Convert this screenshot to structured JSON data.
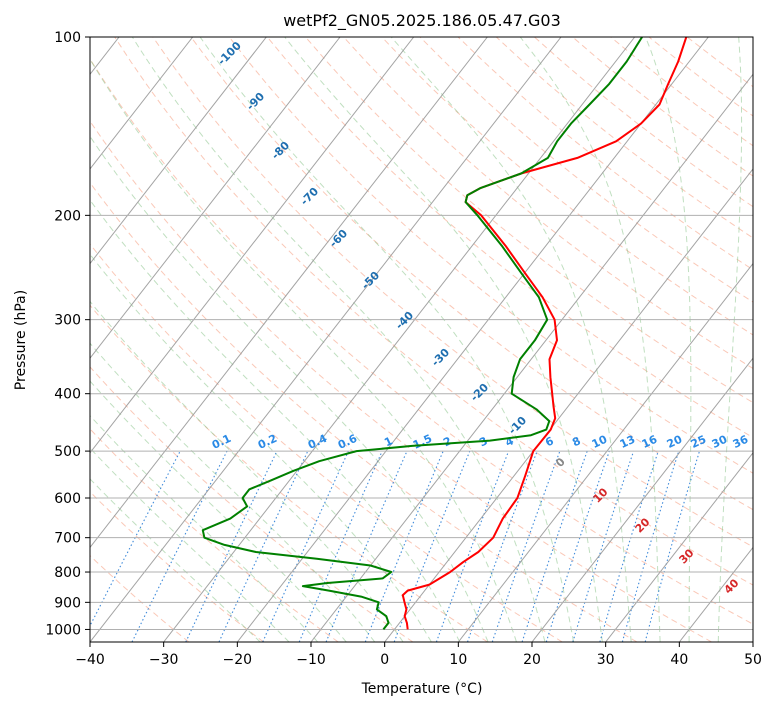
{
  "chart_data": {
    "type": "skew-t",
    "title": "wetPf2_GN05.2025.186.05.47.G03",
    "xlabel": "Temperature (°C)",
    "ylabel": "Pressure (hPa)",
    "xlim": [
      -40,
      50
    ],
    "ylim": [
      1050,
      100
    ],
    "y_scale": "log",
    "grid": true,
    "x_ticks": [
      "−40",
      "−30",
      "−20",
      "−10",
      "0",
      "10",
      "20",
      "30",
      "40",
      "50"
    ],
    "x_tick_values": [
      -40,
      -30,
      -20,
      -10,
      0,
      10,
      20,
      30,
      40,
      50
    ],
    "y_ticks": [
      "100",
      "200",
      "300",
      "400",
      "500",
      "600",
      "700",
      "800",
      "900",
      "1000"
    ],
    "y_tick_values": [
      100,
      200,
      300,
      400,
      500,
      600,
      700,
      800,
      900,
      1000
    ],
    "isotherm_labels": [
      "-100",
      "-90",
      "-80",
      "-70",
      "-60",
      "-50",
      "-40",
      "-30",
      "-20",
      "-10"
    ],
    "isotherm_label_values": [
      -100,
      -90,
      -80,
      -70,
      -60,
      -50,
      -40,
      -30,
      -20,
      -10
    ],
    "mixing_ratio_labels": [
      "0.1",
      "0.2",
      "0.4",
      "0.6",
      "1",
      "1.5",
      "2",
      "3",
      "4",
      "6",
      "8",
      "10",
      "13",
      "16",
      "20",
      "25",
      "30",
      "36"
    ],
    "mixing_ratio_values": [
      0.1,
      0.2,
      0.4,
      0.6,
      1,
      1.5,
      2,
      3,
      4,
      6,
      8,
      10,
      13,
      16,
      20,
      25,
      30,
      36
    ],
    "moist_adiabat_labels": [
      "0",
      "10",
      "20",
      "30",
      "40"
    ],
    "series": [
      {
        "color": "#ff0000",
        "points": [
          {
            "p": 1000,
            "t": 1.8
          },
          {
            "p": 975,
            "t": 1.0
          },
          {
            "p": 950,
            "t": 0.0
          },
          {
            "p": 925,
            "t": -0.5
          },
          {
            "p": 900,
            "t": -1.5
          },
          {
            "p": 875,
            "t": -2.5
          },
          {
            "p": 860,
            "t": -2.3
          },
          {
            "p": 840,
            "t": 0.0
          },
          {
            "p": 800,
            "t": 1.5
          },
          {
            "p": 770,
            "t": 2.2
          },
          {
            "p": 740,
            "t": 3.2
          },
          {
            "p": 700,
            "t": 3.7
          },
          {
            "p": 650,
            "t": 3.0
          },
          {
            "p": 600,
            "t": 2.8
          },
          {
            "p": 550,
            "t": 1.5
          },
          {
            "p": 500,
            "t": 0.0
          },
          {
            "p": 460,
            "t": 0.1
          },
          {
            "p": 440,
            "t": -0.5
          },
          {
            "p": 420,
            "t": -2.0
          },
          {
            "p": 400,
            "t": -3.5
          },
          {
            "p": 375,
            "t": -5.5
          },
          {
            "p": 350,
            "t": -7.5
          },
          {
            "p": 325,
            "t": -8.5
          },
          {
            "p": 300,
            "t": -11.0
          },
          {
            "p": 275,
            "t": -15.0
          },
          {
            "p": 250,
            "t": -20.0
          },
          {
            "p": 225,
            "t": -25.5
          },
          {
            "p": 200,
            "t": -32.0
          },
          {
            "p": 190,
            "t": -35.5
          },
          {
            "p": 185,
            "t": -36.0
          },
          {
            "p": 180,
            "t": -35.0
          },
          {
            "p": 170,
            "t": -31.0
          },
          {
            "p": 160,
            "t": -25.0
          },
          {
            "p": 150,
            "t": -21.5
          },
          {
            "p": 140,
            "t": -20.0
          },
          {
            "p": 130,
            "t": -19.5
          },
          {
            "p": 120,
            "t": -20.5
          },
          {
            "p": 110,
            "t": -21.5
          },
          {
            "p": 100,
            "t": -23.0
          }
        ]
      },
      {
        "color": "#008000",
        "points": [
          {
            "p": 1000,
            "t": -1.5
          },
          {
            "p": 975,
            "t": -1.5
          },
          {
            "p": 950,
            "t": -2.5
          },
          {
            "p": 925,
            "t": -4.5
          },
          {
            "p": 900,
            "t": -5.0
          },
          {
            "p": 880,
            "t": -8.0
          },
          {
            "p": 860,
            "t": -13.0
          },
          {
            "p": 845,
            "t": -17.0
          },
          {
            "p": 835,
            "t": -14.0
          },
          {
            "p": 820,
            "t": -7.0
          },
          {
            "p": 800,
            "t": -6.5
          },
          {
            "p": 780,
            "t": -10.0
          },
          {
            "p": 760,
            "t": -18.0
          },
          {
            "p": 740,
            "t": -27.0
          },
          {
            "p": 720,
            "t": -32.0
          },
          {
            "p": 700,
            "t": -35.5
          },
          {
            "p": 680,
            "t": -36.5
          },
          {
            "p": 650,
            "t": -34.0
          },
          {
            "p": 620,
            "t": -33.0
          },
          {
            "p": 600,
            "t": -34.5
          },
          {
            "p": 580,
            "t": -34.5
          },
          {
            "p": 560,
            "t": -32.5
          },
          {
            "p": 540,
            "t": -30.5
          },
          {
            "p": 520,
            "t": -28.0
          },
          {
            "p": 500,
            "t": -24.0
          },
          {
            "p": 490,
            "t": -17.0
          },
          {
            "p": 480,
            "t": -7.0
          },
          {
            "p": 470,
            "t": -2.0
          },
          {
            "p": 460,
            "t": -0.5
          },
          {
            "p": 445,
            "t": -1.0
          },
          {
            "p": 425,
            "t": -4.0
          },
          {
            "p": 400,
            "t": -9.0
          },
          {
            "p": 375,
            "t": -10.5
          },
          {
            "p": 350,
            "t": -11.5
          },
          {
            "p": 325,
            "t": -11.5
          },
          {
            "p": 300,
            "t": -12.0
          },
          {
            "p": 275,
            "t": -15.5
          },
          {
            "p": 250,
            "t": -20.5
          },
          {
            "p": 225,
            "t": -26.0
          },
          {
            "p": 200,
            "t": -32.5
          },
          {
            "p": 190,
            "t": -35.5
          },
          {
            "p": 185,
            "t": -36.0
          },
          {
            "p": 180,
            "t": -35.0
          },
          {
            "p": 170,
            "t": -31.0
          },
          {
            "p": 160,
            "t": -29.0
          },
          {
            "p": 150,
            "t": -29.5
          },
          {
            "p": 140,
            "t": -29.5
          },
          {
            "p": 130,
            "t": -29.0
          },
          {
            "p": 120,
            "t": -28.5
          },
          {
            "p": 110,
            "t": -28.5
          },
          {
            "p": 100,
            "t": -29.0
          }
        ]
      }
    ]
  }
}
